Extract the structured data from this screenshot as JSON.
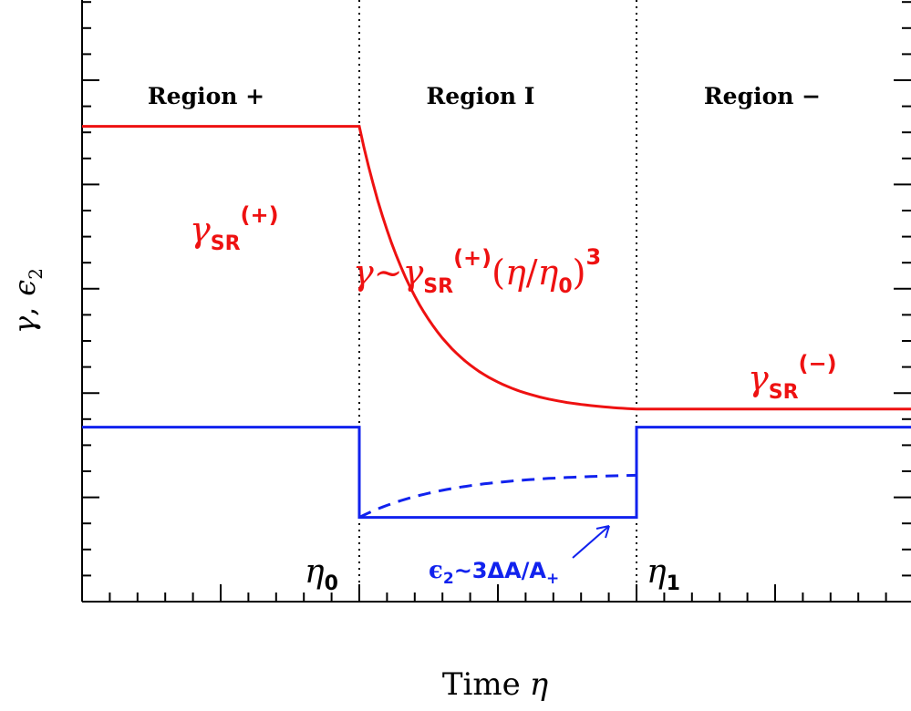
{
  "colors": {
    "red": "#ee1111",
    "blue": "#1122ee",
    "black": "#000000"
  },
  "axes": {
    "xlabel_prefix": "Time",
    "xlabel_symbol": "η",
    "ylabel_gamma": "γ",
    "ylabel_comma": ",",
    "ylabel_eps": "ϵ",
    "ylabel_sub": "2"
  },
  "regions": {
    "plus": "Region +",
    "one": "Region I",
    "minus": "Region −"
  },
  "markers": {
    "eta0_symbol": "η",
    "eta0_sub": "0",
    "eta1_symbol": "η",
    "eta1_sub": "1"
  },
  "annotations": {
    "gamma_plus": {
      "base": "γ",
      "sub": "SR",
      "sup": "(+)"
    },
    "gamma_minus": {
      "base": "γ",
      "sub": "SR",
      "sup": "(−)"
    },
    "gamma_evol": {
      "lead": "γ~",
      "base": "γ",
      "sub": "SR",
      "sup": "(+)",
      "paren_open": "(",
      "eta": "η",
      "slash": "/",
      "eta0": "η",
      "eta0_sub": "0",
      "paren_close": ")",
      "power": "3"
    },
    "eps2": {
      "eps": "ϵ",
      "sub": "2",
      "body": "~3ΔA/A",
      "sub_plus": "+"
    }
  },
  "chart_data": {
    "type": "line",
    "x_domain": [
      0,
      1
    ],
    "y_domain": [
      0,
      1
    ],
    "x_ticks": "unlabeled",
    "y_ticks": "unlabeled",
    "vertical_markers": [
      {
        "label": "η0",
        "x": 0.3333,
        "style": "dotted"
      },
      {
        "label": "η1",
        "x": 0.6667,
        "style": "dotted"
      }
    ],
    "series": [
      {
        "color": "red",
        "style": "solid",
        "segments": [
          {
            "from": 0.0,
            "to": 0.3333,
            "shape": "constant",
            "y": 0.79
          },
          {
            "from": 0.3333,
            "to": 0.6667,
            "shape": "decay",
            "y_start": 0.79,
            "y_end": 0.32
          },
          {
            "from": 0.6667,
            "to": 1.0,
            "shape": "constant",
            "y": 0.32
          }
        ]
      },
      {
        "color": "blue",
        "style": "solid",
        "segments": [
          {
            "from": 0.0,
            "to": 0.3333,
            "shape": "constant",
            "y": 0.29
          },
          {
            "from": 0.3333,
            "to": 0.6667,
            "shape": "constant",
            "y": 0.14
          },
          {
            "from": 0.6667,
            "to": 1.0,
            "shape": "constant",
            "y": 0.29
          }
        ]
      },
      {
        "color": "blue",
        "style": "dashed",
        "segments": [
          {
            "from": 0.3333,
            "to": 0.6667,
            "shape": "rise",
            "y_start": 0.14,
            "y_end": 0.21
          }
        ]
      }
    ]
  }
}
